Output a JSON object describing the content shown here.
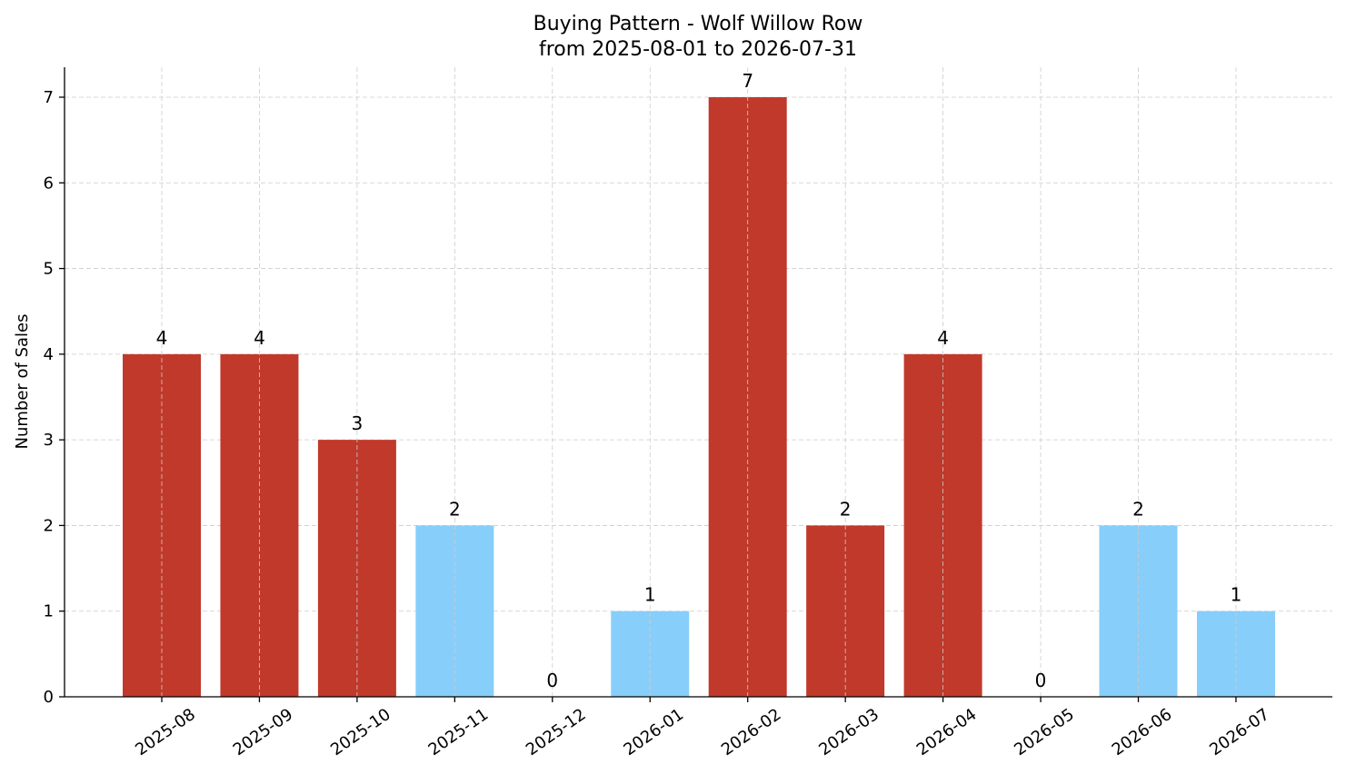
{
  "chart_data": {
    "type": "bar",
    "title": "Buying Pattern - Wolf Willow Row",
    "subtitle": "from 2025-08-01 to 2026-07-31",
    "xlabel": "",
    "ylabel": "Number of Sales",
    "categories": [
      "2025-08",
      "2025-09",
      "2025-10",
      "2025-11",
      "2025-12",
      "2026-01",
      "2026-02",
      "2026-03",
      "2026-04",
      "2026-05",
      "2026-06",
      "2026-07"
    ],
    "values": [
      4,
      4,
      3,
      2,
      0,
      1,
      7,
      2,
      4,
      0,
      2,
      1
    ],
    "bar_colors": [
      "#c0392b",
      "#c0392b",
      "#c0392b",
      "#87cefa",
      "#87cefa",
      "#87cefa",
      "#c0392b",
      "#c0392b",
      "#c0392b",
      "#87cefa",
      "#87cefa",
      "#87cefa"
    ],
    "yticks": [
      0,
      1,
      2,
      3,
      4,
      5,
      6,
      7
    ],
    "ylim": [
      0,
      7.35
    ],
    "grid": true
  }
}
